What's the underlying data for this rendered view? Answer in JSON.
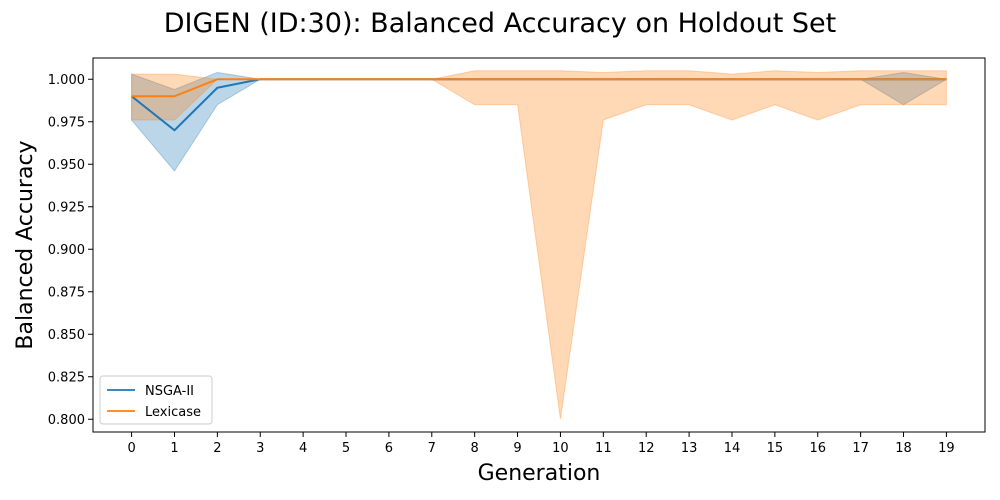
{
  "chart_data": {
    "type": "line",
    "title": "DIGEN (ID:30): Balanced Accuracy on Holdout Set",
    "xlabel": "Generation",
    "ylabel": "Balanced Accuracy",
    "x": [
      0,
      1,
      2,
      3,
      4,
      5,
      6,
      7,
      8,
      9,
      10,
      11,
      12,
      13,
      14,
      15,
      16,
      17,
      18,
      19
    ],
    "xlim": [
      -0.9,
      19.9
    ],
    "ylim": [
      0.7925,
      1.0125
    ],
    "yticks": [
      0.8,
      0.825,
      0.85,
      0.875,
      0.9,
      0.925,
      0.95,
      0.975,
      1.0
    ],
    "ytick_labels": [
      "0.800",
      "0.825",
      "0.850",
      "0.875",
      "0.900",
      "0.925",
      "0.950",
      "0.975",
      "1.000"
    ],
    "grid": false,
    "legend_position": "lower-left",
    "series": [
      {
        "name": "NSGA-II",
        "color": "#1f77b4",
        "values": [
          0.99,
          0.97,
          0.995,
          1.0,
          1.0,
          1.0,
          1.0,
          1.0,
          1.0,
          1.0,
          1.0,
          1.0,
          1.0,
          1.0,
          1.0,
          1.0,
          1.0,
          1.0,
          1.0,
          1.0
        ],
        "lower": [
          0.976,
          0.946,
          0.985,
          1.0,
          1.0,
          1.0,
          1.0,
          1.0,
          1.0,
          1.0,
          1.0,
          1.0,
          1.0,
          1.0,
          1.0,
          1.0,
          1.0,
          1.0,
          0.985,
          1.0
        ],
        "upper": [
          1.003,
          0.994,
          1.004,
          1.0,
          1.0,
          1.0,
          1.0,
          1.0,
          1.0,
          1.0,
          1.0,
          1.0,
          1.0,
          1.0,
          1.0,
          1.0,
          1.0,
          1.0,
          1.004,
          1.0
        ]
      },
      {
        "name": "Lexicase",
        "color": "#ff7f0e",
        "values": [
          0.99,
          0.99,
          1.0,
          1.0,
          1.0,
          1.0,
          1.0,
          1.0,
          1.0,
          1.0,
          1.0,
          1.0,
          1.0,
          1.0,
          1.0,
          1.0,
          1.0,
          1.0,
          1.0,
          1.0
        ],
        "lower": [
          0.976,
          0.976,
          1.0,
          1.0,
          1.0,
          1.0,
          1.0,
          1.0,
          0.985,
          0.985,
          0.8,
          0.976,
          0.985,
          0.985,
          0.976,
          0.985,
          0.976,
          0.985,
          0.985,
          0.985
        ],
        "upper": [
          1.003,
          1.003,
          1.0,
          1.0,
          1.0,
          1.0,
          1.0,
          1.0,
          1.005,
          1.005,
          1.005,
          1.004,
          1.005,
          1.005,
          1.003,
          1.005,
          1.004,
          1.005,
          1.005,
          1.005
        ]
      }
    ]
  }
}
